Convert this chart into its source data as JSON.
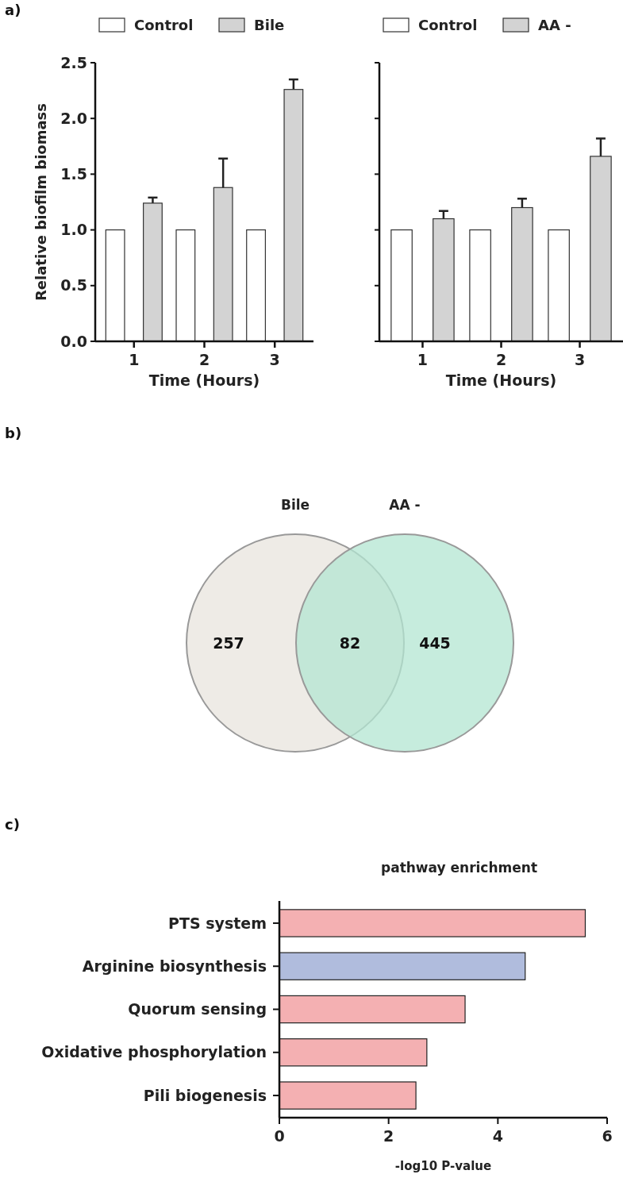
{
  "chart_data": [
    {
      "type": "bar",
      "categories": [
        "1",
        "2",
        "3"
      ],
      "xlabel": "Time (Hours)",
      "ylabel": "Relative biofilm biomass",
      "ylim": [
        0,
        2.5
      ],
      "yticks": [
        {
          "value": 0,
          "label": "0.0"
        },
        0.5,
        {
          "value": 1,
          "label": "1.0"
        },
        1.5,
        {
          "value": 2,
          "label": "2.0"
        },
        2.5
      ],
      "legend": "top",
      "annotations": [
        "a)"
      ],
      "series": [
        {
          "name": "Control",
          "color": "#ffffff",
          "values": [
            1,
            1,
            1
          ]
        },
        {
          "name": "Bile",
          "color": "#d3d3d3",
          "values": [
            1.24,
            1.38,
            2.26
          ],
          "errors": [
            [
              1.24,
              1.29
            ],
            [
              1.38,
              1.64
            ],
            [
              2.26,
              2.35
            ]
          ]
        }
      ]
    },
    {
      "type": "bar",
      "categories": [
        "1",
        "2",
        "3"
      ],
      "xlabel": "Time (Hours)",
      "ylim": [
        0,
        2.5
      ],
      "yticks": [
        {
          "value": 0,
          "label": null
        },
        {
          "value": 0.5,
          "label": null
        },
        {
          "value": 1,
          "label": null
        },
        {
          "value": 1.5,
          "label": null
        },
        {
          "value": 2,
          "label": null
        },
        {
          "value": 2.5,
          "label": null
        }
      ],
      "tick_labels": "x",
      "legend": "top",
      "series": [
        {
          "name": "Control",
          "color": "#ffffff",
          "values": [
            1,
            1,
            1
          ]
        },
        {
          "name": "AA -",
          "color": "#d3d3d3",
          "values": [
            1.1,
            1.2,
            1.66
          ],
          "errors": [
            [
              1.1,
              1.17
            ],
            [
              1.2,
              1.28
            ],
            [
              1.66,
              1.82
            ]
          ]
        }
      ]
    },
    {
      "type": "other",
      "categories": [
        "Bile",
        "AA -"
      ],
      "colors": [
        "#e8e4de",
        "#b3e6d2"
      ],
      "annotations": [
        "b)",
        "257",
        "82",
        "445"
      ]
    },
    {
      "type": "bar",
      "orientation": "horizontal",
      "title": "pathway enrichment",
      "xlabel": "-log10 P-value",
      "categories": [
        "PTS system",
        "Arginine biosynthesis",
        "Quorum sensing",
        "Oxidative phosphorylation",
        "Pili biogenesis"
      ],
      "values": [
        5.6,
        4.5,
        3.4,
        2.7,
        2.5
      ],
      "colors": [
        "#f4b0b2",
        "#b0bcdd",
        "#f4b0b2",
        "#f4b0b2",
        "#f4b0b2"
      ],
      "xlim": [
        0,
        6
      ],
      "xticks": [
        0,
        2,
        4,
        6
      ],
      "annotations": [
        "c)"
      ]
    }
  ]
}
